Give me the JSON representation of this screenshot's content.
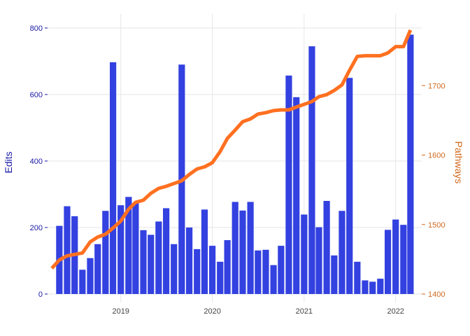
{
  "chart_data": {
    "type": "bar+line",
    "ylabel_left": "Edits",
    "ylabel_right": "Pathways",
    "ylim_left": [
      0,
      800
    ],
    "ylim_right": [
      1400,
      1800
    ],
    "yticks_left": [
      0,
      200,
      400,
      600,
      800
    ],
    "yticks_right": [
      1400,
      1500,
      1600,
      1700
    ],
    "xticks": [
      "2019",
      "2020",
      "2021",
      "2022"
    ],
    "xtick_dates": [
      "2019-01-01",
      "2020-01-01",
      "2021-01-01",
      "2022-01-01"
    ],
    "xlim": [
      "2018-03-15",
      "2022-04-15"
    ],
    "grid": true,
    "colors": {
      "bars": "#3341e0",
      "line": "#ff7020",
      "left_axis": "#1a1aa6",
      "right_axis": "#d2691e",
      "grid": "#e6e6e6"
    },
    "bar_series": {
      "name": "Edits",
      "x": [
        "2018-05-01",
        "2018-06-01",
        "2018-07-01",
        "2018-08-01",
        "2018-09-01",
        "2018-10-01",
        "2018-11-01",
        "2018-12-01",
        "2019-01-01",
        "2019-02-01",
        "2019-03-01",
        "2019-04-01",
        "2019-05-01",
        "2019-06-01",
        "2019-07-01",
        "2019-08-01",
        "2019-09-01",
        "2019-10-01",
        "2019-11-01",
        "2019-12-01",
        "2020-01-01",
        "2020-02-01",
        "2020-03-01",
        "2020-04-01",
        "2020-05-01",
        "2020-06-01",
        "2020-07-01",
        "2020-08-01",
        "2020-09-01",
        "2020-10-01",
        "2020-11-01",
        "2020-12-01",
        "2021-01-01",
        "2021-02-01",
        "2021-03-01",
        "2021-04-01",
        "2021-05-01",
        "2021-06-01",
        "2021-07-01",
        "2021-08-01",
        "2021-09-01",
        "2021-10-01",
        "2021-11-01",
        "2021-12-01",
        "2022-01-01",
        "2022-02-01",
        "2022-03-01"
      ],
      "values": [
        205,
        264,
        234,
        73,
        108,
        150,
        250,
        697,
        267,
        292,
        274,
        192,
        178,
        218,
        258,
        150,
        690,
        200,
        135,
        254,
        145,
        97,
        162,
        277,
        251,
        277,
        131,
        133,
        87,
        145,
        657,
        592,
        239,
        745,
        201,
        280,
        116,
        250,
        650,
        97,
        41,
        37,
        46,
        193,
        224,
        208,
        780
      ]
    },
    "line_series": {
      "name": "Pathways",
      "x": [
        "2018-04-01",
        "2018-05-01",
        "2018-06-01",
        "2018-07-01",
        "2018-08-01",
        "2018-09-01",
        "2018-10-01",
        "2018-11-01",
        "2018-12-01",
        "2019-01-01",
        "2019-02-01",
        "2019-03-01",
        "2019-04-01",
        "2019-05-01",
        "2019-06-01",
        "2019-07-01",
        "2019-08-01",
        "2019-09-01",
        "2019-10-01",
        "2019-11-01",
        "2019-12-01",
        "2020-01-01",
        "2020-02-01",
        "2020-03-01",
        "2020-04-01",
        "2020-05-01",
        "2020-06-01",
        "2020-07-01",
        "2020-08-01",
        "2020-09-01",
        "2020-10-01",
        "2020-11-01",
        "2020-12-01",
        "2021-01-01",
        "2021-02-01",
        "2021-03-01",
        "2021-04-01",
        "2021-05-01",
        "2021-06-01",
        "2021-07-01",
        "2021-08-01",
        "2021-09-01",
        "2021-10-01",
        "2021-11-01",
        "2021-12-01",
        "2022-01-01",
        "2022-02-01",
        "2022-03-01"
      ],
      "values": [
        1437,
        1449,
        1455,
        1457,
        1459,
        1475,
        1482,
        1486,
        1495,
        1505,
        1522,
        1532,
        1535,
        1545,
        1552,
        1555,
        1559,
        1563,
        1572,
        1580,
        1583,
        1589,
        1605,
        1624,
        1636,
        1648,
        1652,
        1659,
        1661,
        1664,
        1665,
        1665,
        1669,
        1673,
        1677,
        1684,
        1687,
        1693,
        1701,
        1722,
        1742,
        1743,
        1743,
        1743,
        1747,
        1756,
        1756,
        1780
      ]
    }
  }
}
